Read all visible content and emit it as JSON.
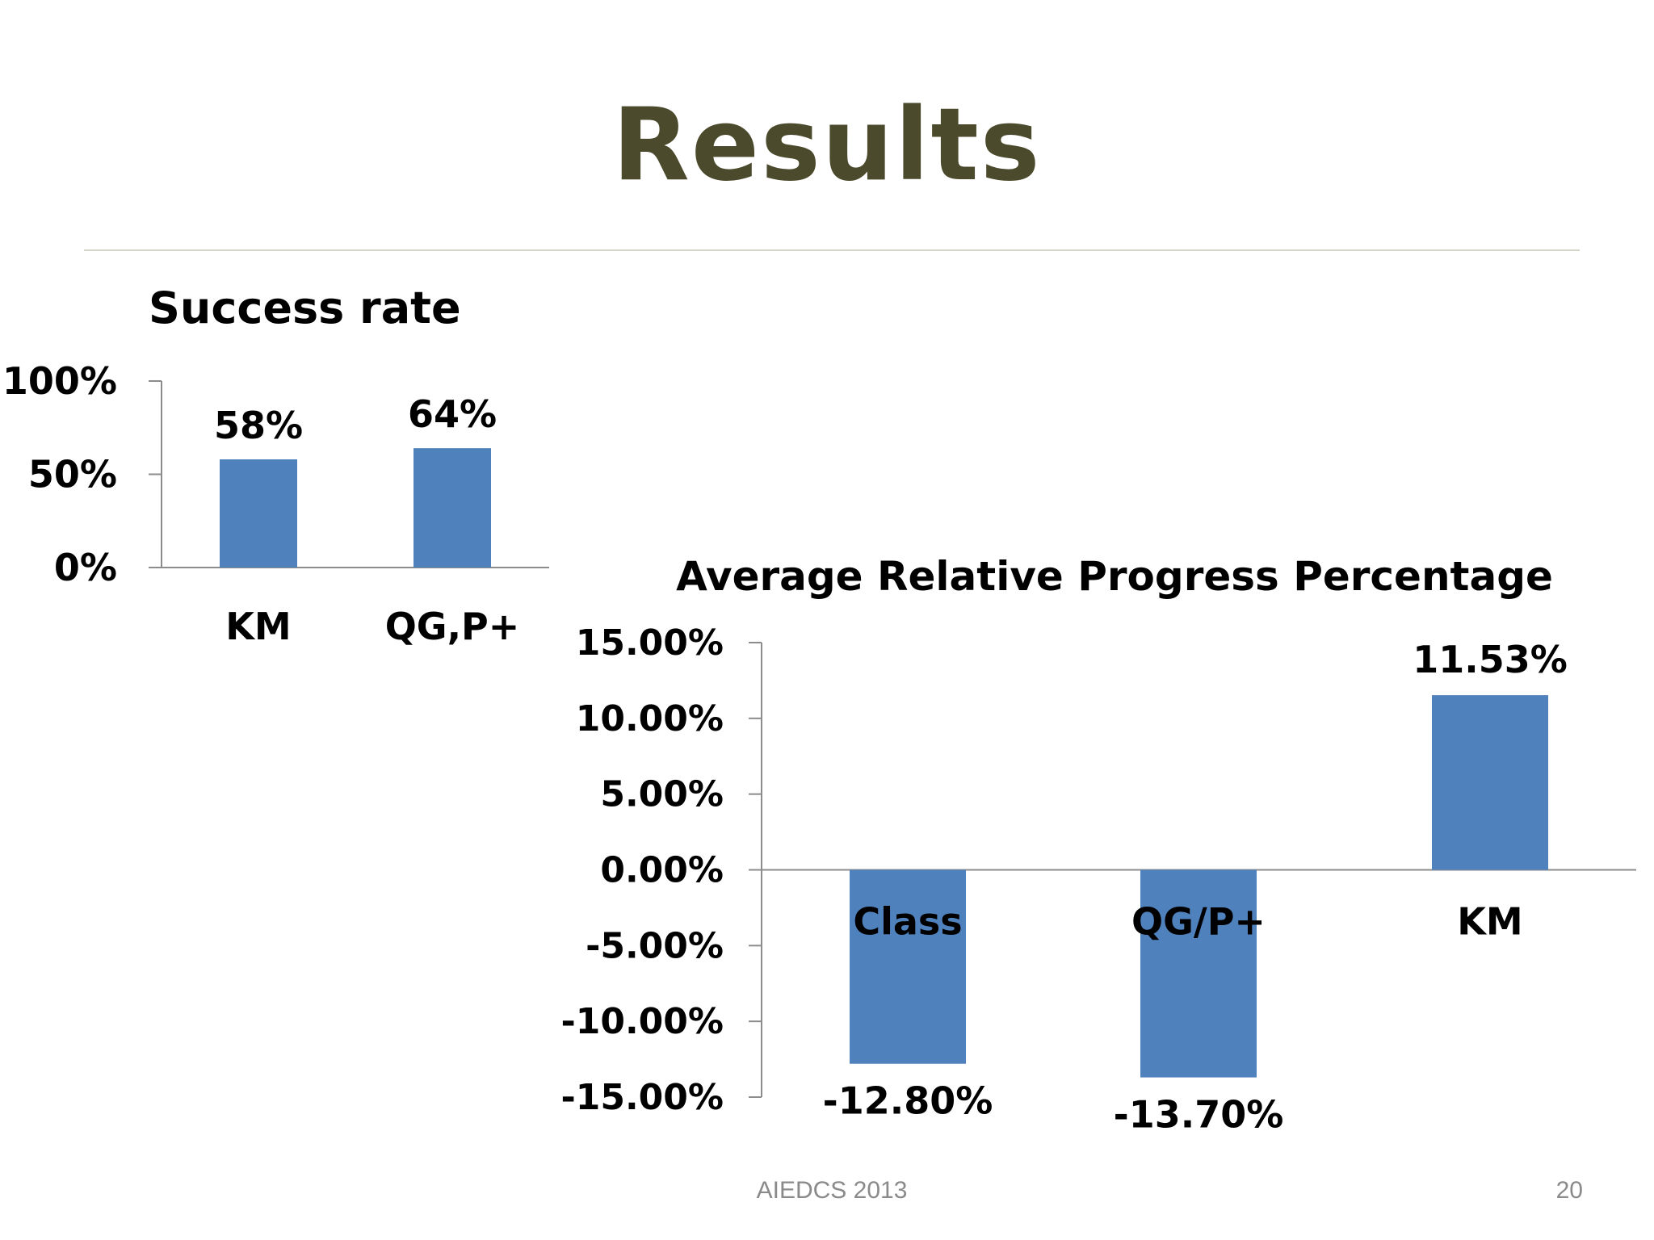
{
  "slide": {
    "title": "Results",
    "footer_left": "AIEDCS 2013",
    "page_number": "20"
  },
  "colors": {
    "bar": "#4f81bd",
    "title": "#4b4a2c",
    "axis": "#8c8c8c"
  },
  "chart_data": [
    {
      "type": "bar",
      "title": "Success rate",
      "categories": [
        "KM",
        "QG,P+"
      ],
      "values": [
        58,
        64
      ],
      "data_labels": [
        "58%",
        "64%"
      ],
      "ylim": [
        0,
        100
      ],
      "yticks": [
        0,
        50,
        100
      ],
      "ytick_labels": [
        "0%",
        "50%",
        "100%"
      ],
      "xlabel": "",
      "ylabel": "",
      "grid": false,
      "legend": "none"
    },
    {
      "type": "bar",
      "title": "Average Relative Progress Percentage",
      "categories": [
        "Class",
        "QG/P+",
        "KM"
      ],
      "values": [
        -12.8,
        -13.7,
        11.53
      ],
      "data_labels": [
        "-12.80%",
        "-13.70%",
        "11.53%"
      ],
      "ylim": [
        -15,
        15
      ],
      "yticks": [
        15,
        10,
        5,
        0,
        -5,
        -10,
        -15
      ],
      "ytick_labels": [
        "15.00%",
        "10.00%",
        "5.00%",
        "0.00%",
        "-5.00%",
        "-10.00%",
        "-15.00%"
      ],
      "xlabel": "",
      "ylabel": "",
      "grid": false,
      "legend": "none"
    }
  ]
}
